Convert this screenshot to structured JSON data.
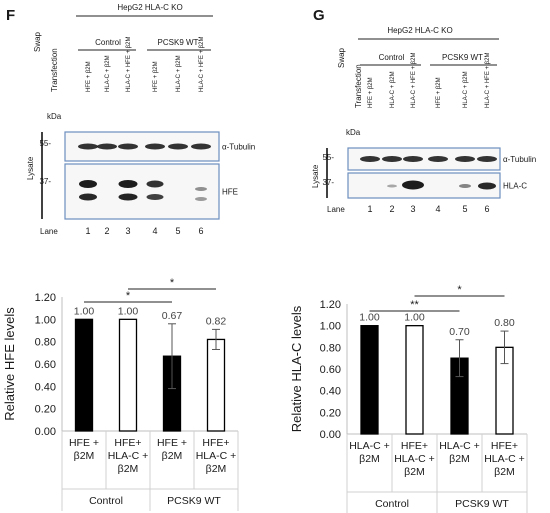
{
  "panel_f": {
    "letter": "F",
    "cell_line": "HepG2 HLA-C KO",
    "swap_label": "Swap",
    "transfection_label": "Transfection",
    "groups": [
      "Control",
      "PCSK9 WT"
    ],
    "lanes": [
      "HFE + β2M",
      "HLA-C + β2M",
      "HLA-C + HFE + β2M",
      "HFE + β2M",
      "HLA-C + β2M",
      "HLA-C + HFE + β2M"
    ],
    "kda_label": "kDa",
    "markers": [
      "55-",
      "37-"
    ],
    "lysate_label": "Lysate",
    "blot_labels": [
      "α-Tubulin",
      "HFE"
    ],
    "lane_label": "Lane",
    "lane_numbers": [
      "1",
      "2",
      "3",
      "4",
      "5",
      "6"
    ]
  },
  "panel_g": {
    "letter": "G",
    "cell_line": "HepG2 HLA-C KO",
    "swap_label": "Swap",
    "transfection_label": "Transfection",
    "groups": [
      "Control",
      "PCSK9 WT"
    ],
    "lanes": [
      "HFE + β2M",
      "HLA-C + β2M",
      "HLA-C + HFE + β2M",
      "HFE + β2M",
      "HLA-C + β2M",
      "HLA-C + HFE + β2M"
    ],
    "kda_label": "kDa",
    "markers": [
      "55-",
      "37-"
    ],
    "lysate_label": "Lysate",
    "blot_labels": [
      "α-Tubulin",
      "HLA-C"
    ],
    "lane_label": "Lane",
    "lane_numbers": [
      "1",
      "2",
      "3",
      "4",
      "5",
      "6"
    ]
  },
  "chart_data": [
    {
      "type": "bar",
      "ylabel": "Relative HFE levels",
      "ylim": [
        0,
        1.2
      ],
      "yticks": [
        "0.00",
        "0.20",
        "0.40",
        "0.60",
        "0.80",
        "1.00",
        "1.20"
      ],
      "categories": [
        [
          "HFE +",
          "β2M"
        ],
        [
          "HFE+",
          "HLA-C +",
          "β2M"
        ],
        [
          "HFE +",
          "β2M"
        ],
        [
          "HFE+",
          "HLA-C +",
          "β2M"
        ]
      ],
      "groups": [
        "Control",
        "PCSK9 WT"
      ],
      "values": [
        1.0,
        1.0,
        0.67,
        0.82
      ],
      "errors": [
        0,
        0,
        0.29,
        0.09
      ],
      "value_labels": [
        "1.00",
        "1.00",
        "0.67",
        "0.82"
      ],
      "fills": [
        "#000000",
        "#ffffff",
        "#000000",
        "#ffffff"
      ],
      "significance": [
        {
          "from": 0,
          "to": 2,
          "label": "*"
        },
        {
          "from": 1,
          "to": 3,
          "label": "*"
        }
      ]
    },
    {
      "type": "bar",
      "ylabel": "Relative HLA-C levels",
      "ylim": [
        0,
        1.2
      ],
      "yticks": [
        "0.00",
        "0.20",
        "0.40",
        "0.60",
        "0.80",
        "1.00",
        "1.20"
      ],
      "categories": [
        [
          "HLA-C +",
          "β2M"
        ],
        [
          "HFE+",
          "HLA-C +",
          "β2M"
        ],
        [
          "HLA-C +",
          "β2M"
        ],
        [
          "HFE+",
          "HLA-C +",
          "β2M"
        ]
      ],
      "groups": [
        "Control",
        "PCSK9 WT"
      ],
      "values": [
        1.0,
        1.0,
        0.7,
        0.8
      ],
      "errors": [
        0,
        0,
        0.17,
        0.15
      ],
      "value_labels": [
        "1.00",
        "1.00",
        "0.70",
        "0.80"
      ],
      "fills": [
        "#000000",
        "#ffffff",
        "#000000",
        "#ffffff"
      ],
      "significance": [
        {
          "from": 0,
          "to": 2,
          "label": "**"
        },
        {
          "from": 1,
          "to": 3,
          "label": "*"
        }
      ]
    }
  ]
}
